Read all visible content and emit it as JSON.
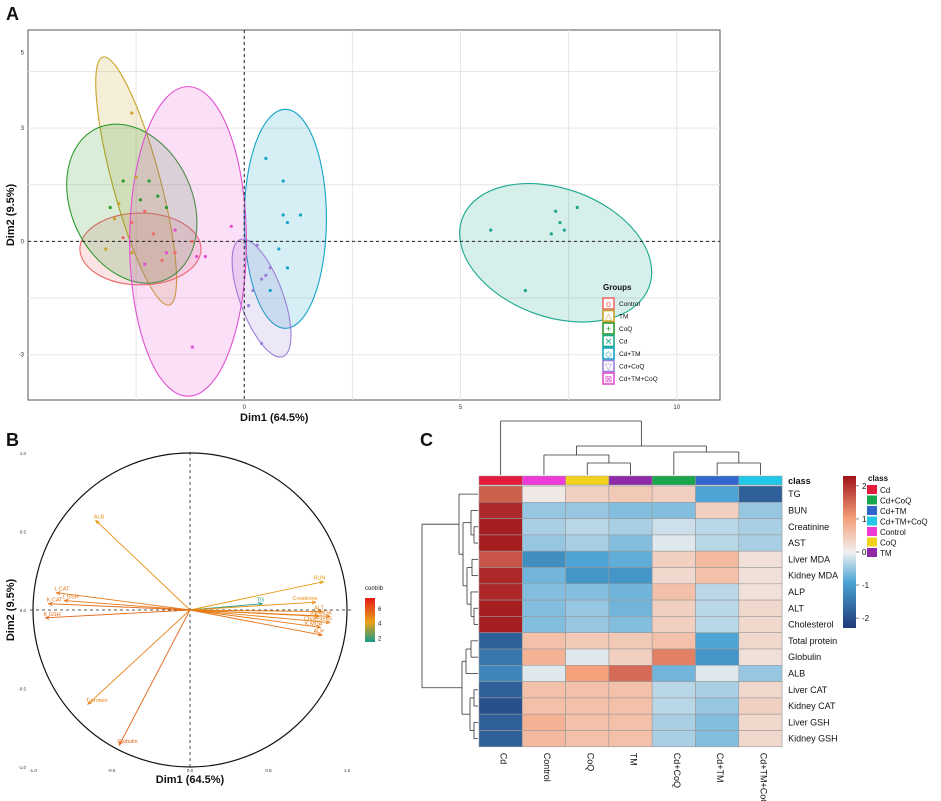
{
  "panel_labels": {
    "a": "A",
    "b": "B",
    "c": "C"
  },
  "colors": {
    "Control": "#ee6a6a",
    "TM": "#c9a227",
    "CoQ": "#2e9a2e",
    "Cd": "#1aa88e",
    "CdTM": "#14a4c8",
    "CdCoQ": "#9a7fd8",
    "CdTMCoQ": "#e24fd1"
  },
  "chart_data": [
    {
      "type": "scatter",
      "id": "pca_individuals",
      "xlabel": "Dim1 (64.5%)",
      "ylabel": "Dim2 (9.5%)",
      "xlim": [
        -5,
        11
      ],
      "ylim": [
        -4.2,
        5.6
      ],
      "x_ticks": [
        {
          "v": 0,
          "label": "0"
        },
        {
          "v": 5,
          "label": "5"
        },
        {
          "v": 10,
          "label": "10"
        }
      ],
      "y_ticks": [
        {
          "v": -3,
          "label": "-3"
        },
        {
          "v": 0,
          "label": "0"
        },
        {
          "v": 3,
          "label": "3"
        },
        {
          "v": 5,
          "label": "5"
        }
      ],
      "legend_title": "Groups",
      "legend": [
        "Control",
        "TM",
        "CoQ",
        "Cd",
        "Cd+TM",
        "Cd+CoQ",
        "Cd+TM+CoQ"
      ],
      "series": [
        {
          "name": "Control",
          "key": "Control",
          "points": [
            [
              -2.6,
              0.5
            ],
            [
              -2.3,
              0.8
            ],
            [
              -2.8,
              0.1
            ],
            [
              -2.1,
              0.2
            ],
            [
              -1.6,
              -0.3
            ],
            [
              -1.2,
              0.0
            ],
            [
              -1.9,
              -0.5
            ]
          ],
          "ellipse": {
            "cx": -2.4,
            "cy": -0.2,
            "rx": 1.4,
            "ry": 0.95,
            "angle": 0
          }
        },
        {
          "name": "TM",
          "key": "TM",
          "points": [
            [
              -2.6,
              3.4
            ],
            [
              -2.5,
              1.7
            ],
            [
              -2.9,
              1.0
            ],
            [
              -3.0,
              0.6
            ],
            [
              -2.6,
              -0.3
            ],
            [
              -3.2,
              -0.2
            ]
          ],
          "ellipse": {
            "cx": -2.5,
            "cy": 1.6,
            "rx": 0.55,
            "ry": 3.4,
            "angle": 15
          }
        },
        {
          "name": "CoQ",
          "key": "CoQ",
          "points": [
            [
              -2.8,
              1.6
            ],
            [
              -2.4,
              1.1
            ],
            [
              -2.2,
              1.6
            ],
            [
              -3.1,
              0.9
            ],
            [
              -2.0,
              1.2
            ],
            [
              -1.8,
              0.9
            ]
          ],
          "ellipse": {
            "cx": -2.6,
            "cy": 1.0,
            "rx": 1.4,
            "ry": 2.2,
            "angle": 25
          }
        },
        {
          "name": "Cd",
          "key": "Cd",
          "points": [
            [
              5.7,
              0.3
            ],
            [
              6.5,
              -1.3
            ],
            [
              7.1,
              0.2
            ],
            [
              7.4,
              0.3
            ],
            [
              7.3,
              0.5
            ],
            [
              7.7,
              0.9
            ],
            [
              7.2,
              0.8
            ]
          ],
          "ellipse": {
            "cx": 7.2,
            "cy": -0.3,
            "rx": 2.3,
            "ry": 1.7,
            "angle": -20
          }
        },
        {
          "name": "Cd+TM",
          "key": "CdTM",
          "points": [
            [
              0.5,
              2.2
            ],
            [
              0.9,
              1.6
            ],
            [
              1.0,
              0.5
            ],
            [
              0.9,
              0.7
            ],
            [
              1.3,
              0.7
            ],
            [
              1.0,
              -0.7
            ],
            [
              0.6,
              -1.3
            ],
            [
              0.8,
              -0.2
            ]
          ],
          "ellipse": {
            "cx": 0.95,
            "cy": 0.6,
            "rx": 0.95,
            "ry": 2.9,
            "angle": 0
          }
        },
        {
          "name": "Cd+CoQ",
          "key": "CdCoQ",
          "points": [
            [
              0.4,
              -1.0
            ],
            [
              0.5,
              -0.9
            ],
            [
              0.3,
              -0.1
            ],
            [
              0.2,
              -1.3
            ],
            [
              0.1,
              -1.7
            ],
            [
              0.6,
              -0.7
            ],
            [
              0.4,
              -2.7
            ]
          ],
          "ellipse": {
            "cx": 0.4,
            "cy": -1.5,
            "rx": 0.5,
            "ry": 1.65,
            "angle": 20
          }
        },
        {
          "name": "Cd+TM+CoQ",
          "key": "CdTMCoQ",
          "points": [
            [
              -1.1,
              -0.4
            ],
            [
              -0.9,
              -0.4
            ],
            [
              -2.3,
              -0.6
            ],
            [
              -1.2,
              -2.8
            ],
            [
              -0.3,
              0.4
            ],
            [
              -1.6,
              0.3
            ],
            [
              -1.8,
              -0.3
            ]
          ],
          "ellipse": {
            "cx": -1.3,
            "cy": 0.0,
            "rx": 1.35,
            "ry": 4.1,
            "angle": 0
          }
        }
      ]
    },
    {
      "type": "scatter",
      "id": "pca_variables",
      "xlabel": "Dim1 (64.5%)",
      "ylabel": "Dim2 (9.5%)",
      "xlim": [
        -1.05,
        1.05
      ],
      "ylim": [
        -1.05,
        1.05
      ],
      "x_ticks": [
        {
          "v": -1,
          "label": "-1.0"
        },
        {
          "v": -0.5,
          "label": "-0.5"
        },
        {
          "v": 0,
          "label": "0.0"
        },
        {
          "v": 0.5,
          "label": "0.5"
        },
        {
          "v": 1,
          "label": "1.0"
        }
      ],
      "y_ticks": [
        {
          "v": 1,
          "label": "1.0"
        },
        {
          "v": 0.5,
          "label": "0.5"
        },
        {
          "v": 0,
          "label": "0.0"
        },
        {
          "v": -0.5,
          "label": "-0.5"
        },
        {
          "v": -1,
          "label": "-1.0"
        }
      ],
      "legend_title": "contrib",
      "legend_ticks": [
        {
          "v": 6,
          "label": "6"
        },
        {
          "v": 4,
          "label": "4"
        },
        {
          "v": 2,
          "label": "2"
        }
      ],
      "contrib_range": [
        1.5,
        7.5
      ],
      "variables": [
        {
          "name": "ALB",
          "x": -0.6,
          "y": 0.57,
          "contrib": 4.6
        },
        {
          "name": "L CAT",
          "x": -0.85,
          "y": 0.11,
          "contrib": 5.2
        },
        {
          "name": "L GSH",
          "x": -0.8,
          "y": 0.06,
          "contrib": 5.3
        },
        {
          "name": "K CAT",
          "x": -0.9,
          "y": 0.04,
          "contrib": 5.5
        },
        {
          "name": "K GSH",
          "x": -0.92,
          "y": -0.05,
          "contrib": 5.6
        },
        {
          "name": "T protein",
          "x": -0.65,
          "y": -0.6,
          "contrib": 5.0
        },
        {
          "name": "Globulin",
          "x": -0.45,
          "y": -0.86,
          "contrib": 5.8
        },
        {
          "name": "TG",
          "x": 0.46,
          "y": 0.04,
          "contrib": 1.6
        },
        {
          "name": "BUN",
          "x": 0.85,
          "y": 0.18,
          "contrib": 4.4
        },
        {
          "name": "Creatinine",
          "x": 0.8,
          "y": 0.05,
          "contrib": 4.6
        },
        {
          "name": "ALT",
          "x": 0.84,
          "y": -0.01,
          "contrib": 5.0
        },
        {
          "name": "AST",
          "x": 0.82,
          "y": -0.04,
          "contrib": 5.0
        },
        {
          "name": "L MDA",
          "x": 0.89,
          "y": -0.04,
          "contrib": 5.2
        },
        {
          "name": "K MDA",
          "x": 0.83,
          "y": -0.11,
          "contrib": 5.2
        },
        {
          "name": "Cholesterol",
          "x": 0.89,
          "y": -0.08,
          "contrib": 5.1
        },
        {
          "name": "ALP",
          "x": 0.84,
          "y": -0.16,
          "contrib": 5.4
        }
      ]
    },
    {
      "type": "heatmap",
      "id": "heatmap",
      "columns": [
        "Cd",
        "Control",
        "CoQ",
        "TM",
        "Cd+CoQ",
        "Cd+TM",
        "Cd+TM+CoQ"
      ],
      "column_classes": [
        "Cd",
        "Control",
        "CoQ",
        "TM",
        "Cd+CoQ",
        "Cd+TM",
        "Cd+TM+CoQ"
      ],
      "class_header": "class",
      "rows": [
        "TG",
        "BUN",
        "Creatinine",
        "AST",
        "Liver MDA",
        "Kidney MDA",
        "ALP",
        "ALT",
        "Cholesterol",
        "Total protein",
        "Globulin",
        "ALB",
        "Liver CAT",
        "Kidney CAT",
        "Liver GSH",
        "Kidney GSH"
      ],
      "values": [
        [
          1.6,
          0.1,
          0.4,
          0.5,
          0.4,
          -0.9,
          -1.8
        ],
        [
          2.1,
          -0.5,
          -0.5,
          -0.6,
          -0.6,
          0.4,
          -0.5
        ],
        [
          2.2,
          -0.4,
          -0.3,
          -0.4,
          -0.2,
          -0.3,
          -0.4
        ],
        [
          2.2,
          -0.5,
          -0.4,
          -0.6,
          -0.1,
          -0.3,
          -0.4
        ],
        [
          1.7,
          -1.2,
          -0.9,
          -0.8,
          0.4,
          0.7,
          0.2
        ],
        [
          2.1,
          -0.7,
          -1.1,
          -1.1,
          0.3,
          0.6,
          0.2
        ],
        [
          2.1,
          -0.6,
          -0.6,
          -0.7,
          0.6,
          -0.3,
          0.2
        ],
        [
          2.2,
          -0.6,
          -0.5,
          -0.7,
          0.4,
          -0.3,
          0.3
        ],
        [
          2.2,
          -0.6,
          -0.5,
          -0.6,
          0.4,
          -0.3,
          0.3
        ],
        [
          -1.8,
          0.6,
          0.5,
          0.5,
          0.6,
          -0.9,
          0.3
        ],
        [
          -1.5,
          0.8,
          -0.1,
          0.4,
          1.3,
          -1.1,
          0.2
        ],
        [
          -1.3,
          -0.1,
          1.0,
          1.5,
          -0.7,
          -0.1,
          -0.5
        ],
        [
          -1.8,
          0.6,
          0.6,
          0.6,
          -0.3,
          -0.4,
          0.3
        ],
        [
          -2.0,
          0.6,
          0.6,
          0.6,
          -0.3,
          -0.5,
          0.4
        ],
        [
          -1.8,
          0.8,
          0.6,
          0.6,
          -0.4,
          -0.6,
          0.3
        ],
        [
          -1.8,
          0.7,
          0.6,
          0.6,
          -0.4,
          -0.6,
          0.3
        ]
      ],
      "scale_min": -2.3,
      "scale_max": 2.3,
      "scale_ticks": [
        {
          "v": 2,
          "label": "2"
        },
        {
          "v": 1,
          "label": "1"
        },
        {
          "v": 0,
          "label": "0"
        },
        {
          "v": -1,
          "label": "-1"
        },
        {
          "v": -2,
          "label": "-2"
        }
      ],
      "class_legend_title": "class",
      "class_legend": [
        {
          "name": "Cd",
          "color": "#e41a3c"
        },
        {
          "name": "Cd+CoQ",
          "color": "#1aa64a"
        },
        {
          "name": "Cd+TM",
          "color": "#3366cc"
        },
        {
          "name": "Cd+TM+CoQ",
          "color": "#22c7e8"
        },
        {
          "name": "Control",
          "color": "#ee3ad6"
        },
        {
          "name": "CoQ",
          "color": "#f2d21c"
        },
        {
          "name": "TM",
          "color": "#8e2aa8"
        }
      ]
    }
  ]
}
